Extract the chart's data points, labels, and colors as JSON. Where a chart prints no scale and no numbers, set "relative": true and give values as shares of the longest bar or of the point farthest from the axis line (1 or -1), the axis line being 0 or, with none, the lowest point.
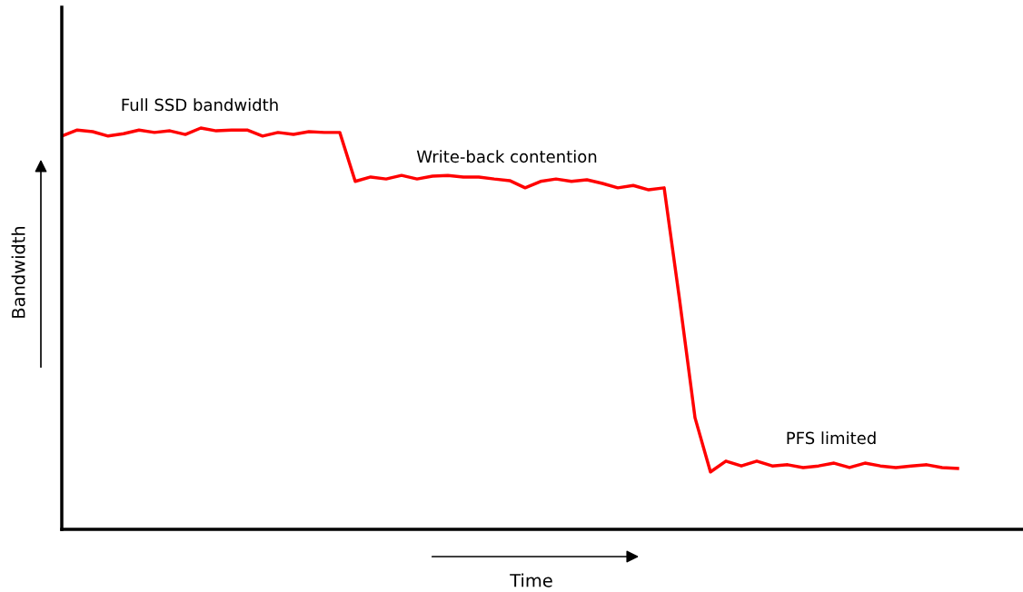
{
  "chart_data": {
    "type": "line",
    "relative": true,
    "xlabel": "Time",
    "ylabel": "Bandwidth",
    "categories": [
      null,
      null,
      null,
      null,
      null,
      null,
      null,
      null,
      null,
      null,
      null,
      null,
      null,
      null,
      null,
      null,
      null,
      null,
      null,
      null,
      null,
      null,
      null,
      null,
      null,
      null,
      null,
      null,
      null,
      null,
      null,
      null,
      null,
      null,
      null,
      null,
      null,
      null,
      null,
      null,
      null,
      null,
      null,
      null,
      null,
      null,
      null,
      null,
      null,
      null,
      null,
      null,
      null,
      null,
      null,
      null,
      null,
      null,
      null
    ],
    "series": [
      {
        "color": "#ff0000",
        "values": [
          0.98,
          0.995,
          0.991,
          0.98,
          0.986,
          0.995,
          0.989,
          0.993,
          0.984,
          1.0,
          0.993,
          0.995,
          0.995,
          0.98,
          0.989,
          0.984,
          0.991,
          0.989,
          0.989,
          0.867,
          0.878,
          0.873,
          0.882,
          0.873,
          0.88,
          0.882,
          0.878,
          0.878,
          0.873,
          0.869,
          0.851,
          0.867,
          0.873,
          0.867,
          0.871,
          0.862,
          0.851,
          0.857,
          0.846,
          0.851,
          0.572,
          0.278,
          0.143,
          0.17,
          0.158,
          0.17,
          0.158,
          0.161,
          0.154,
          0.158,
          0.165,
          0.154,
          0.165,
          0.158,
          0.154,
          0.158,
          0.161,
          0.154,
          0.152
        ]
      }
    ],
    "annotations": [
      "Full SSD bandwidth",
      "Write-back contention",
      "PFS limited"
    ],
    "grid": false,
    "legend": false,
    "marker": "none",
    "line_style": "solid"
  }
}
